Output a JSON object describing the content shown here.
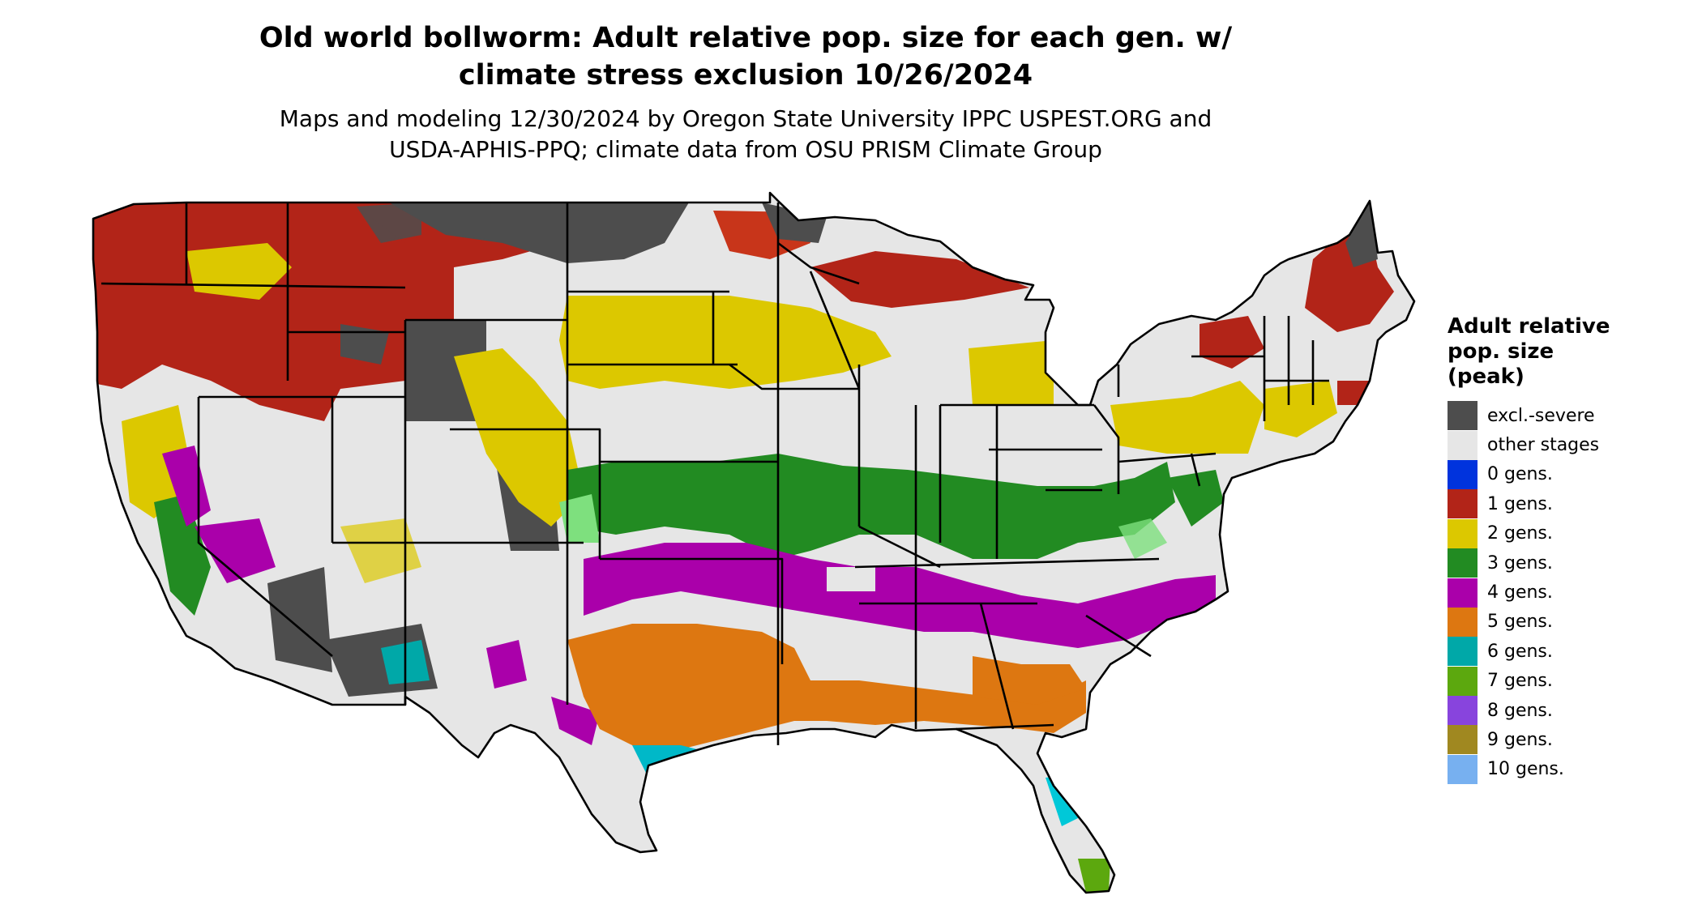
{
  "title": {
    "line1": "Old world bollworm: Adult relative pop. size for each gen. w/",
    "line2": "climate stress exclusion 10/26/2024"
  },
  "subtitle": {
    "line1": "Maps and modeling 12/30/2024 by Oregon State University IPPC USPEST.ORG and",
    "line2": "USDA-APHIS-PPQ; climate data from OSU PRISM Climate Group"
  },
  "legend": {
    "title_lines": [
      "Adult relative",
      "pop. size",
      "(peak)"
    ],
    "items": [
      {
        "label": "excl.-severe",
        "color": "#4d4d4d"
      },
      {
        "label": "other stages",
        "color": "#e6e6e6"
      },
      {
        "label": "0 gens.",
        "color": "#0033dd"
      },
      {
        "label": "1 gens.",
        "color": "#b22418"
      },
      {
        "label": "2 gens.",
        "color": "#dcc800"
      },
      {
        "label": "3 gens.",
        "color": "#228b22"
      },
      {
        "label": "4 gens.",
        "color": "#aa00aa"
      },
      {
        "label": "5 gens.",
        "color": "#dd7711"
      },
      {
        "label": "6 gens.",
        "color": "#00a8a8"
      },
      {
        "label": "7 gens.",
        "color": "#5ca80e"
      },
      {
        "label": "8 gens.",
        "color": "#8844dd"
      },
      {
        "label": "9 gens.",
        "color": "#a08820"
      },
      {
        "label": "10 gens.",
        "color": "#77b0f0"
      }
    ]
  }
}
